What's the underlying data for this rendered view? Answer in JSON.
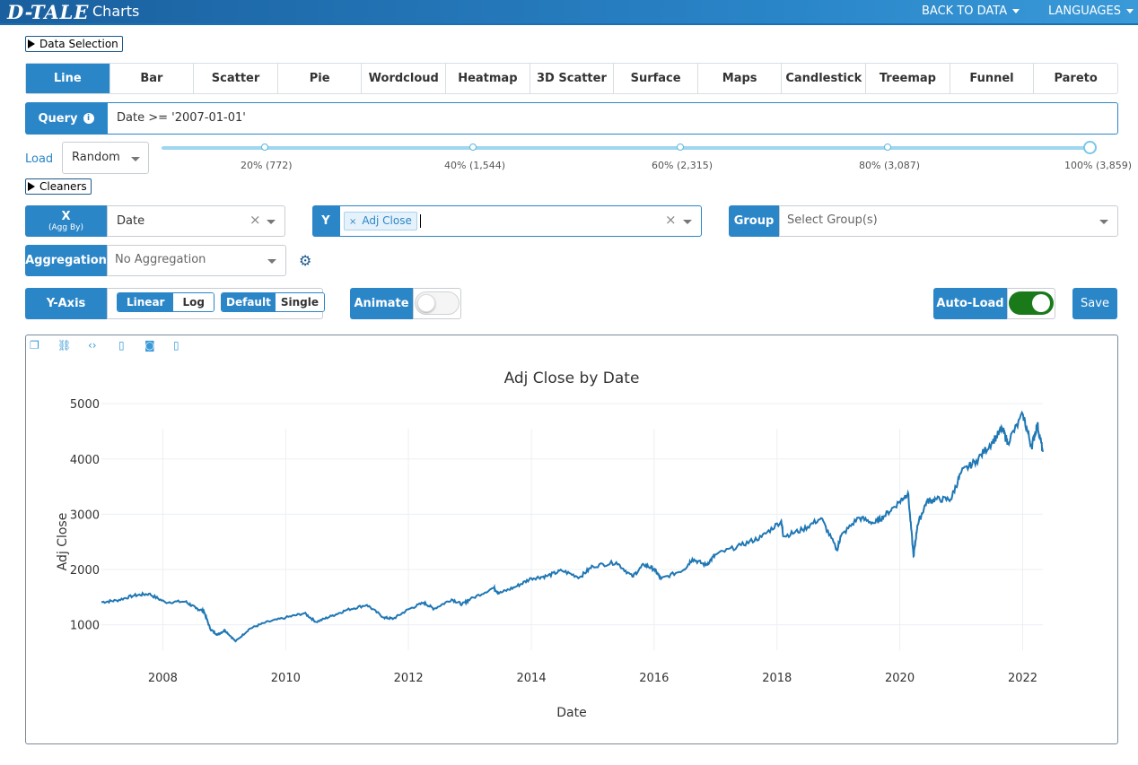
{
  "app": {
    "logo": "D-TALE",
    "title": "Charts"
  },
  "topnav": {
    "back_to_data": "BACK TO DATA",
    "languages": "LANGUAGES"
  },
  "data_selection_label": "Data Selection",
  "cleaners_label": "Cleaners",
  "chart_tabs": [
    "Line",
    "Bar",
    "Scatter",
    "Pie",
    "Wordcloud",
    "Heatmap",
    "3D Scatter",
    "Surface",
    "Maps",
    "Candlestick",
    "Treemap",
    "Funnel",
    "Pareto"
  ],
  "active_tab": "Line",
  "query": {
    "label": "Query",
    "value": "Date >= '2007-01-01'"
  },
  "load": {
    "label": "Load",
    "mode": "Random",
    "slider_labels": [
      "20% (772)",
      "40% (1,544)",
      "60% (2,315)",
      "80% (3,087)",
      "100% (3,859)"
    ],
    "selected_percent": 100
  },
  "x": {
    "label": "X",
    "sublabel": "(Agg By)",
    "value": "Date"
  },
  "y": {
    "label": "Y",
    "tag": "Adj Close"
  },
  "group": {
    "label": "Group",
    "placeholder": "Select Group(s)"
  },
  "aggregation": {
    "label": "Aggregation",
    "placeholder": "No Aggregation"
  },
  "y_axis": {
    "label": "Y-Axis",
    "linear": "Linear",
    "log": "Log",
    "default": "Default",
    "single": "Single"
  },
  "animate": {
    "label": "Animate",
    "on": false
  },
  "auto_load": {
    "label": "Auto-Load",
    "on": true
  },
  "save_label": "Save",
  "colors": {
    "accent": "#2b86c8",
    "line": "#1f77b4",
    "toggle_on": "#1a7a1a"
  },
  "chart_data": {
    "type": "line",
    "title": "Adj Close by Date",
    "xlabel": "Date",
    "ylabel": "Adj Close",
    "xticks": [
      "2008",
      "2010",
      "2012",
      "2014",
      "2016",
      "2018",
      "2020",
      "2022"
    ],
    "yticks": [
      1000,
      2000,
      3000,
      4000,
      5000
    ],
    "grid": true,
    "series": [
      {
        "x": [
          "2007-01-01",
          "2007-04-01",
          "2007-07-15",
          "2007-10-10",
          "2008-01-15",
          "2008-05-15",
          "2008-07-15",
          "2008-09-01",
          "2008-10-10",
          "2008-11-20",
          "2009-01-05",
          "2009-03-09",
          "2009-06-01",
          "2009-09-01",
          "2010-01-01",
          "2010-04-23",
          "2010-07-01",
          "2010-10-01",
          "2011-01-01",
          "2011-04-29",
          "2011-08-08",
          "2011-10-03",
          "2012-01-01",
          "2012-04-01",
          "2012-06-01",
          "2012-09-14",
          "2012-11-15",
          "2013-01-01",
          "2013-05-21",
          "2013-06-24",
          "2013-10-01",
          "2014-01-01",
          "2014-04-01",
          "2014-07-01",
          "2014-10-15",
          "2015-01-01",
          "2015-05-21",
          "2015-08-25",
          "2015-11-01",
          "2016-01-01",
          "2016-02-11",
          "2016-06-27",
          "2016-08-15",
          "2016-11-04",
          "2017-01-01",
          "2017-06-01",
          "2017-10-01",
          "2018-01-26",
          "2018-02-08",
          "2018-06-01",
          "2018-09-20",
          "2018-12-24",
          "2019-01-15",
          "2019-04-30",
          "2019-08-05",
          "2019-10-01",
          "2020-01-01",
          "2020-02-19",
          "2020-03-23",
          "2020-04-15",
          "2020-06-08",
          "2020-08-01",
          "2020-10-30",
          "2021-01-01",
          "2021-04-01",
          "2021-07-01",
          "2021-09-02",
          "2021-10-04",
          "2022-01-03",
          "2022-02-23",
          "2022-03-29",
          "2022-05-01"
        ],
        "y": [
          1410,
          1440,
          1530,
          1560,
          1410,
          1420,
          1300,
          1250,
          920,
          820,
          900,
          700,
          930,
          1040,
          1130,
          1210,
          1050,
          1160,
          1270,
          1360,
          1130,
          1110,
          1280,
          1400,
          1290,
          1460,
          1370,
          1460,
          1670,
          1570,
          1690,
          1840,
          1880,
          1980,
          1860,
          2060,
          2130,
          1870,
          2090,
          2010,
          1830,
          2000,
          2190,
          2080,
          2270,
          2440,
          2590,
          2880,
          2600,
          2720,
          2930,
          2350,
          2600,
          2940,
          2840,
          2970,
          3230,
          3390,
          2240,
          2800,
          3230,
          3270,
          3270,
          3760,
          3970,
          4300,
          4540,
          4300,
          4800,
          4220,
          4630,
          4130
        ]
      }
    ]
  }
}
